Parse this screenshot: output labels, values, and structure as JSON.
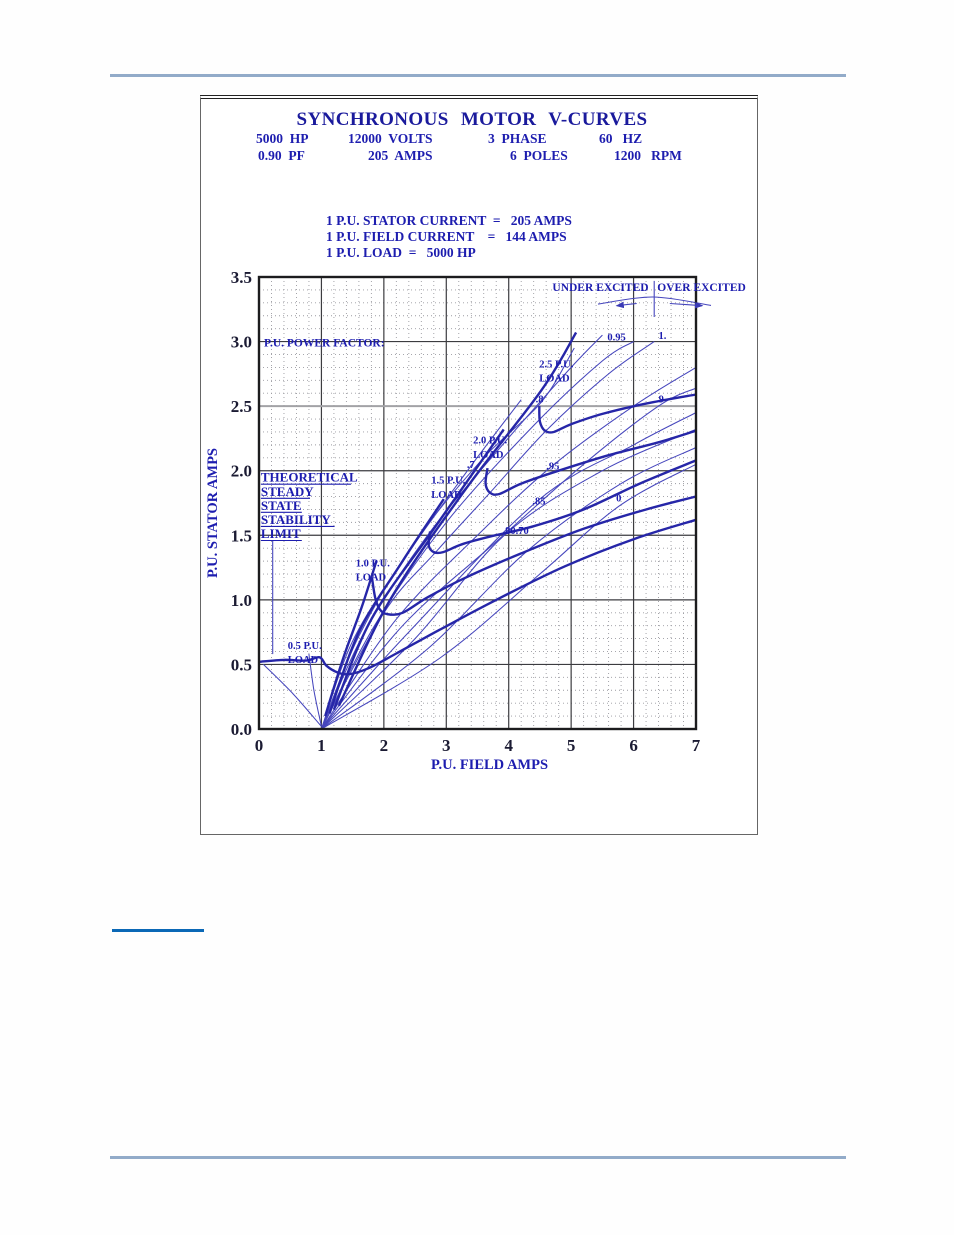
{
  "page": {
    "top_rule": "header-rule",
    "bottom_rule": "footer-rule",
    "link_rule": "footnote-link-rule"
  },
  "figure": {
    "title": "SYNCHRONOUS MOTOR V-CURVES",
    "specs_row1": [
      "5000  HP",
      "12000  VOLTS",
      "3  PHASE",
      "60   HZ"
    ],
    "specs_row2": [
      "0.90  PF",
      "205  AMPS",
      "6  POLES",
      "1200   RPM"
    ],
    "pu_lines": [
      "1 P.U. STATOR CURRENT  =   205 AMPS",
      "1 P.U. FIELD CURRENT    =   144 AMPS",
      "1 P.U. LOAD  =   5000 HP"
    ]
  },
  "chart_data": {
    "type": "line",
    "title": "SYNCHRONOUS MOTOR V-CURVES",
    "xlabel": "P.U. FIELD AMPS",
    "ylabel": "P.U. STATOR AMPS",
    "xlim": [
      0,
      7
    ],
    "ylim": [
      0,
      3.5
    ],
    "x_major_step": 1,
    "y_major_step": 0.5,
    "x_minor_step": 0.2,
    "y_minor_step": 0.1,
    "grid": true,
    "x_ticks": [
      "0",
      "1",
      "2",
      "3",
      "4",
      "5",
      "6",
      "7"
    ],
    "y_ticks": [
      "0.0",
      "0.5",
      "1.0",
      "1.5",
      "2.0",
      "2.5",
      "3.0",
      "3.5"
    ],
    "pf_lines": [
      {
        "name": "pf-0-underexcited",
        "pts": [
          [
            1,
            0.02
          ],
          [
            0.55,
            0.27
          ],
          [
            0.07,
            0.5
          ]
        ]
      },
      {
        "name": "pf-near-vertical",
        "pts": [
          [
            1,
            0.02
          ],
          [
            0.88,
            0.3
          ],
          [
            0.8,
            0.58
          ]
        ]
      },
      {
        "name": "pf-0.7-underexcited",
        "pts": [
          [
            1,
            0
          ],
          [
            1.5,
            0.68
          ],
          [
            2.3,
            1.3
          ],
          [
            3.37,
            2.02
          ],
          [
            4.2,
            2.55
          ]
        ]
      },
      {
        "name": "pf-0.8-underexcited",
        "pts": [
          [
            1,
            0
          ],
          [
            1.6,
            0.72
          ],
          [
            2.5,
            1.45
          ],
          [
            3.6,
            2.1
          ],
          [
            4.52,
            2.53
          ],
          [
            5.05,
            2.95
          ]
        ]
      },
      {
        "name": "pf-0.9-underexcited",
        "pts": [
          [
            1,
            0
          ],
          [
            1.7,
            0.76
          ],
          [
            2.7,
            1.5
          ],
          [
            3.9,
            2.2
          ],
          [
            5.0,
            2.8
          ],
          [
            5.5,
            3.05
          ]
        ]
      },
      {
        "name": "pf-0.95-underexcited",
        "pts": [
          [
            1,
            0
          ],
          [
            1.85,
            0.8
          ],
          [
            3.0,
            1.6
          ],
          [
            4.4,
            2.35
          ],
          [
            5.5,
            2.85
          ],
          [
            6.0,
            3.0
          ]
        ]
      },
      {
        "name": "pf-1.0-unity",
        "pts": [
          [
            1,
            0
          ],
          [
            2.0,
            0.9
          ],
          [
            2.85,
            1.38
          ],
          [
            3.7,
            1.83
          ],
          [
            4.62,
            2.32
          ],
          [
            5.6,
            2.75
          ],
          [
            6.33,
            3.0
          ]
        ]
      },
      {
        "name": "pf-0.95-overexcited",
        "pts": [
          [
            1,
            0
          ],
          [
            2.2,
            0.85
          ],
          [
            3.5,
            1.5
          ],
          [
            4.68,
            2.03
          ],
          [
            6.0,
            2.5
          ],
          [
            7,
            2.8
          ]
        ]
      },
      {
        "name": "pf-0.9-overexcited",
        "pts": [
          [
            1,
            0
          ],
          [
            2.3,
            0.8
          ],
          [
            3.8,
            1.45
          ],
          [
            5.2,
            2.05
          ],
          [
            6.4,
            2.5
          ],
          [
            7,
            2.64
          ]
        ]
      },
      {
        "name": "pf-0.85-overexcited",
        "pts": [
          [
            1,
            0
          ],
          [
            2.4,
            0.75
          ],
          [
            4.47,
            1.77
          ],
          [
            6.0,
            2.2
          ],
          [
            7,
            2.45
          ]
        ]
      },
      {
        "name": "pf-0.8-overexcited",
        "pts": [
          [
            1,
            0
          ],
          [
            2.5,
            0.7
          ],
          [
            3.93,
            1.5
          ],
          [
            5.5,
            2.0
          ],
          [
            7,
            2.32
          ]
        ]
      },
      {
        "name": "pf-0.7-overexcited",
        "pts": [
          [
            1,
            0
          ],
          [
            2.7,
            0.62
          ],
          [
            4.3,
            1.38
          ],
          [
            5.8,
            1.9
          ],
          [
            7,
            2.18
          ]
        ]
      },
      {
        "name": "pf-0-overexcited",
        "pts": [
          [
            1,
            0
          ],
          [
            2.9,
            0.55
          ],
          [
            4.5,
            1.2
          ],
          [
            5.78,
            1.73
          ],
          [
            7,
            2.05
          ]
        ]
      }
    ],
    "load_curves": [
      {
        "name": "load-0.5-pu",
        "pts": [
          [
            0,
            0.52
          ],
          [
            0.4,
            0.535
          ],
          [
            0.75,
            0.53
          ],
          [
            0.97,
            0.555
          ],
          [
            1.08,
            0.49
          ],
          [
            1.25,
            0.44
          ],
          [
            1.45,
            0.425
          ],
          [
            1.75,
            0.47
          ],
          [
            2.2,
            0.585
          ],
          [
            2.9,
            0.77
          ],
          [
            3.8,
            1.0
          ],
          [
            4.9,
            1.26
          ],
          [
            6.0,
            1.47
          ],
          [
            7,
            1.62
          ]
        ]
      },
      {
        "name": "load-1.0-pu-steep",
        "pts": [
          [
            1.06,
            0.1
          ],
          [
            1.35,
            0.55
          ],
          [
            1.65,
            0.95
          ],
          [
            1.88,
            1.3
          ]
        ]
      },
      {
        "name": "load-1.0-pu",
        "pts": [
          [
            1.81,
            1.17
          ],
          [
            1.86,
            1.02
          ],
          [
            1.93,
            0.93
          ],
          [
            2.05,
            0.89
          ],
          [
            2.3,
            0.9
          ],
          [
            2.7,
            1.02
          ],
          [
            3.3,
            1.17
          ],
          [
            4.2,
            1.36
          ],
          [
            5.2,
            1.55
          ],
          [
            6.2,
            1.7
          ],
          [
            7,
            1.8
          ]
        ]
      },
      {
        "name": "load-1.5-pu-steep",
        "pts": [
          [
            1.13,
            0.12
          ],
          [
            1.6,
            0.75
          ],
          [
            2.3,
            1.3
          ],
          [
            2.96,
            1.78
          ]
        ]
      },
      {
        "name": "load-1.5-pu",
        "pts": [
          [
            2.74,
            1.53
          ],
          [
            2.72,
            1.42
          ],
          [
            2.8,
            1.37
          ],
          [
            2.95,
            1.37
          ],
          [
            3.25,
            1.43
          ],
          [
            3.7,
            1.49
          ],
          [
            4.4,
            1.57
          ],
          [
            5.2,
            1.7
          ],
          [
            6.1,
            1.9
          ],
          [
            7,
            2.08
          ]
        ]
      },
      {
        "name": "load-2.0-pu-steep",
        "pts": [
          [
            1.2,
            0.15
          ],
          [
            1.8,
            0.85
          ],
          [
            2.8,
            1.55
          ],
          [
            3.92,
            2.32
          ]
        ]
      },
      {
        "name": "load-2.0-pu",
        "pts": [
          [
            3.66,
            2.02
          ],
          [
            3.63,
            1.9
          ],
          [
            3.7,
            1.83
          ],
          [
            3.85,
            1.82
          ],
          [
            4.2,
            1.9
          ],
          [
            4.8,
            2.0
          ],
          [
            5.6,
            2.12
          ],
          [
            6.4,
            2.22
          ],
          [
            7,
            2.31
          ]
        ]
      },
      {
        "name": "load-2.5-pu-steep",
        "pts": [
          [
            1.28,
            0.18
          ],
          [
            2.1,
            1.0
          ],
          [
            3.3,
            1.85
          ],
          [
            4.52,
            2.62
          ],
          [
            5.08,
            3.07
          ]
        ]
      },
      {
        "name": "load-2.5-pu",
        "pts": [
          [
            4.49,
            2.5
          ],
          [
            4.5,
            2.38
          ],
          [
            4.58,
            2.31
          ],
          [
            4.72,
            2.3
          ],
          [
            5.0,
            2.36
          ],
          [
            5.5,
            2.44
          ],
          [
            6.2,
            2.52
          ],
          [
            7,
            2.59
          ]
        ]
      }
    ],
    "guides": [
      {
        "name": "excitation-divider",
        "pts": [
          [
            6.33,
            3.19
          ],
          [
            6.33,
            3.47
          ]
        ]
      },
      {
        "name": "excitation-caret",
        "pts": [
          [
            5.43,
            3.29
          ],
          [
            6.31,
            3.345
          ],
          [
            7.24,
            3.28
          ]
        ]
      },
      {
        "name": "stability-leader",
        "pts": [
          [
            0.22,
            0.58
          ],
          [
            0.22,
            1.46
          ]
        ]
      }
    ],
    "arrows": [
      {
        "name": "underexcited-arrow",
        "pts": [
          [
            6.05,
            3.295
          ],
          [
            5.73,
            3.278
          ]
        ]
      },
      {
        "name": "overexcited-arrow",
        "pts": [
          [
            6.58,
            3.295
          ],
          [
            7.1,
            3.278
          ]
        ]
      }
    ],
    "labels": [
      {
        "t": "UNDER EXCITED",
        "x": 4.7,
        "y": 3.39,
        "s": 11.5
      },
      {
        "t": "OVER EXCITED",
        "x": 6.38,
        "y": 3.39,
        "s": 11.5
      },
      {
        "t": "P.U. POWER FACTOR:",
        "x": 0.08,
        "y": 2.96,
        "s": 11.5
      },
      {
        "t": "2.5 P.U.",
        "x": 4.49,
        "y": 2.8,
        "s": 10.5
      },
      {
        "t": "LOAD",
        "x": 4.49,
        "y": 2.69,
        "s": 10.5
      },
      {
        "t": "2.0 P.U.",
        "x": 3.43,
        "y": 2.21,
        "s": 10.5
      },
      {
        "t": "LOAD",
        "x": 3.43,
        "y": 2.1,
        "s": 10.5
      },
      {
        "t": "1.5 P.U.",
        "x": 2.76,
        "y": 1.9,
        "s": 10.5
      },
      {
        "t": "LOAD",
        "x": 2.76,
        "y": 1.79,
        "s": 10.5
      },
      {
        "t": "1.0 P.U.",
        "x": 1.55,
        "y": 1.26,
        "s": 10.5
      },
      {
        "t": "LOAD",
        "x": 1.55,
        "y": 1.15,
        "s": 10.5
      },
      {
        "t": "0.5 P.U.",
        "x": 0.46,
        "y": 0.62,
        "s": 10.5
      },
      {
        "t": "LOAD",
        "x": 0.46,
        "y": 0.51,
        "s": 10.5
      },
      {
        "t": "THEORETICAL",
        "x": 0.03,
        "y": 1.915,
        "s": 13,
        "ul": true
      },
      {
        "t": "STEADY",
        "x": 0.03,
        "y": 1.806,
        "s": 13,
        "ul": true
      },
      {
        "t": "STATE",
        "x": 0.03,
        "y": 1.697,
        "s": 13,
        "ul": true
      },
      {
        "t": "STABILITY",
        "x": 0.03,
        "y": 1.588,
        "s": 13,
        "ul": true
      },
      {
        "t": "LIMIT",
        "x": 0.03,
        "y": 1.479,
        "s": 13,
        "ul": true
      },
      {
        "t": "0.95",
        "x": 5.58,
        "y": 3.01,
        "s": 10.5
      },
      {
        "t": "1.",
        "x": 6.4,
        "y": 3.02,
        "s": 10.5
      },
      {
        "t": ".9",
        "x": 6.36,
        "y": 2.53,
        "s": 10.5
      },
      {
        "t": ".8",
        "x": 4.43,
        "y": 2.53,
        "s": 10.5
      },
      {
        "t": ".7",
        "x": 3.33,
        "y": 2.02,
        "s": 10.5
      },
      {
        "t": ".95",
        "x": 4.6,
        "y": 2.01,
        "s": 10.5
      },
      {
        "t": ".85",
        "x": 4.38,
        "y": 1.74,
        "s": 10.5
      },
      {
        "t": ".80",
        "x": 3.9,
        "y": 1.51,
        "s": 10.5
      },
      {
        "t": ".70",
        "x": 4.11,
        "y": 1.51,
        "s": 10.5
      },
      {
        "t": "0",
        "x": 5.72,
        "y": 1.76,
        "s": 10.5
      }
    ],
    "legend": null,
    "colors": {
      "thin_line": "#4646bd",
      "thick_line": "#2626a8",
      "annotation_text": "#1d1daf",
      "tick_text": "#1b1b33",
      "page_rule": "#92abc9",
      "link_rule": "#0b68b6"
    }
  }
}
